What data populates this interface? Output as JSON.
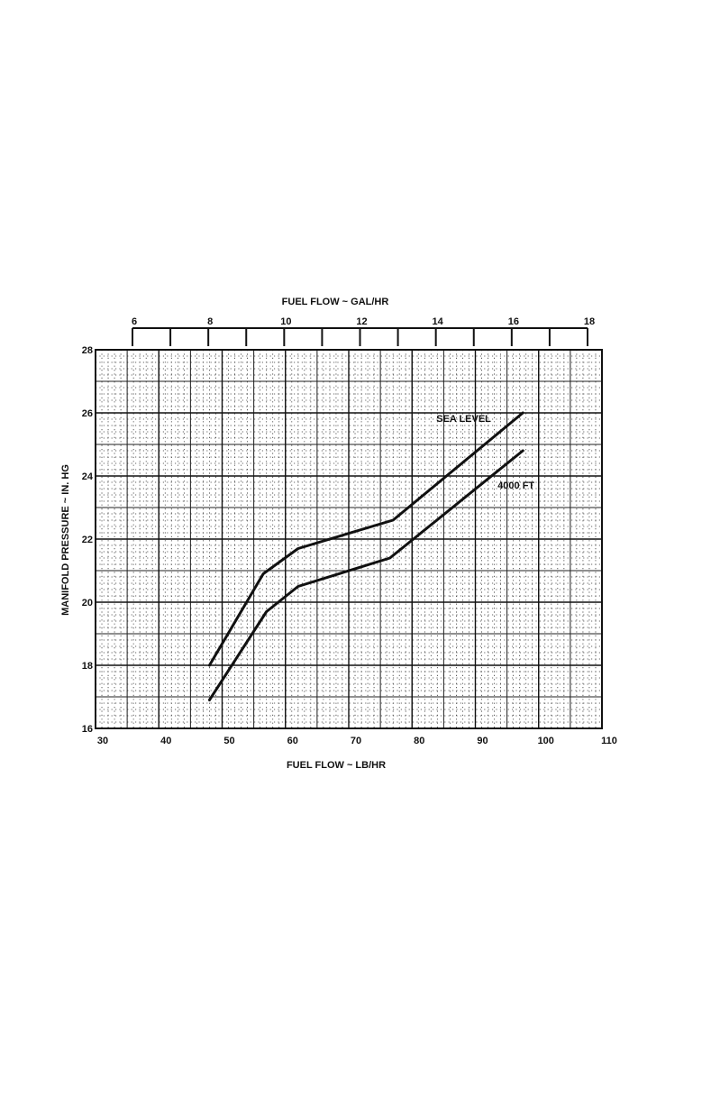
{
  "chart_data": {
    "type": "line",
    "xlabel": "FUEL FLOW ~ LB/HR",
    "ylabel": "MANIFOLD PRESSURE ~ IN. HG",
    "x2label": "FUEL FLOW ~ GAL/HR",
    "xlim": [
      30,
      110
    ],
    "ylim": [
      16,
      28
    ],
    "x2lim": [
      6,
      18
    ],
    "xticks": [
      30,
      40,
      50,
      60,
      70,
      80,
      90,
      100,
      110
    ],
    "yticks": [
      16,
      18,
      20,
      22,
      24,
      26,
      28
    ],
    "x2ticks": [
      6,
      8,
      10,
      12,
      14,
      16,
      18
    ],
    "grid": true,
    "series": [
      {
        "name": "SEA LEVEL",
        "x": [
          48,
          56.5,
          62,
          77,
          97.5
        ],
        "y": [
          18,
          20.9,
          21.7,
          22.6,
          26
        ]
      },
      {
        "name": "4000 FT",
        "x": [
          48,
          57,
          62,
          76.5,
          97.5
        ],
        "y": [
          16.9,
          19.7,
          20.5,
          21.4,
          24.8
        ]
      }
    ]
  }
}
